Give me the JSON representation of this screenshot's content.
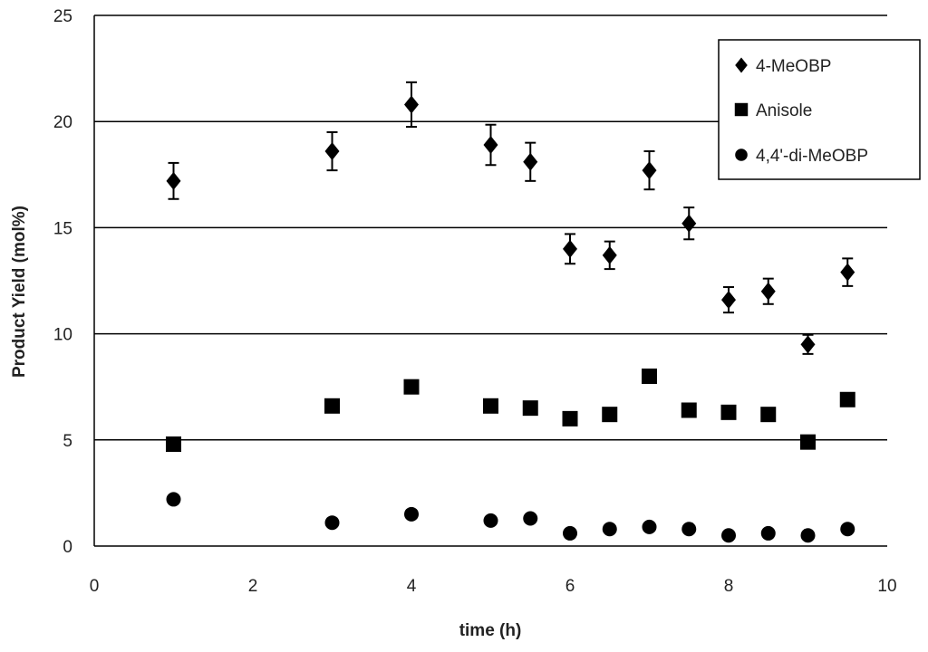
{
  "chart_data": {
    "type": "scatter",
    "title": "",
    "xlabel": "time (h)",
    "ylabel": "Product Yield (mol%)",
    "xlim": [
      0,
      10
    ],
    "ylim": [
      0,
      25
    ],
    "xticks": [
      "0",
      "2",
      "4",
      "6",
      "8",
      "10"
    ],
    "yticks": [
      "0",
      "5",
      "10",
      "15",
      "20",
      "25"
    ],
    "grid": "horizontal",
    "legend_position": "top-right",
    "series": [
      {
        "name": "4-MeOBP",
        "marker": "diamond",
        "color": "#000000",
        "x": [
          1,
          3,
          4,
          5,
          5.5,
          6,
          6.5,
          7,
          7.5,
          8,
          8.5,
          9,
          9.5
        ],
        "y": [
          17.2,
          18.6,
          20.8,
          18.9,
          18.1,
          14.0,
          13.7,
          17.7,
          15.2,
          11.6,
          12.0,
          9.5,
          12.9
        ],
        "error": [
          0.85,
          0.9,
          1.05,
          0.95,
          0.9,
          0.7,
          0.65,
          0.9,
          0.75,
          0.6,
          0.6,
          0.45,
          0.65
        ]
      },
      {
        "name": "Anisole",
        "marker": "square",
        "color": "#000000",
        "x": [
          1,
          3,
          4,
          5,
          5.5,
          6,
          6.5,
          7,
          7.5,
          8,
          8.5,
          9,
          9.5
        ],
        "y": [
          4.8,
          6.6,
          7.5,
          6.6,
          6.5,
          6.0,
          6.2,
          8.0,
          6.4,
          6.3,
          6.2,
          4.9,
          6.9
        ],
        "error": [
          0,
          0,
          0.2,
          0,
          0,
          0,
          0,
          0.25,
          0,
          0,
          0,
          0,
          0.15
        ]
      },
      {
        "name": "4,4'-di-MeOBP",
        "marker": "circle",
        "color": "#000000",
        "x": [
          1,
          3,
          4,
          5,
          5.5,
          6,
          6.5,
          7,
          7.5,
          8,
          8.5,
          9,
          9.5
        ],
        "y": [
          2.2,
          1.1,
          1.5,
          1.2,
          1.3,
          0.6,
          0.8,
          0.9,
          0.8,
          0.5,
          0.6,
          0.5,
          0.8
        ],
        "error": [
          0,
          0,
          0,
          0,
          0,
          0,
          0,
          0,
          0,
          0,
          0,
          0,
          0
        ]
      }
    ]
  }
}
